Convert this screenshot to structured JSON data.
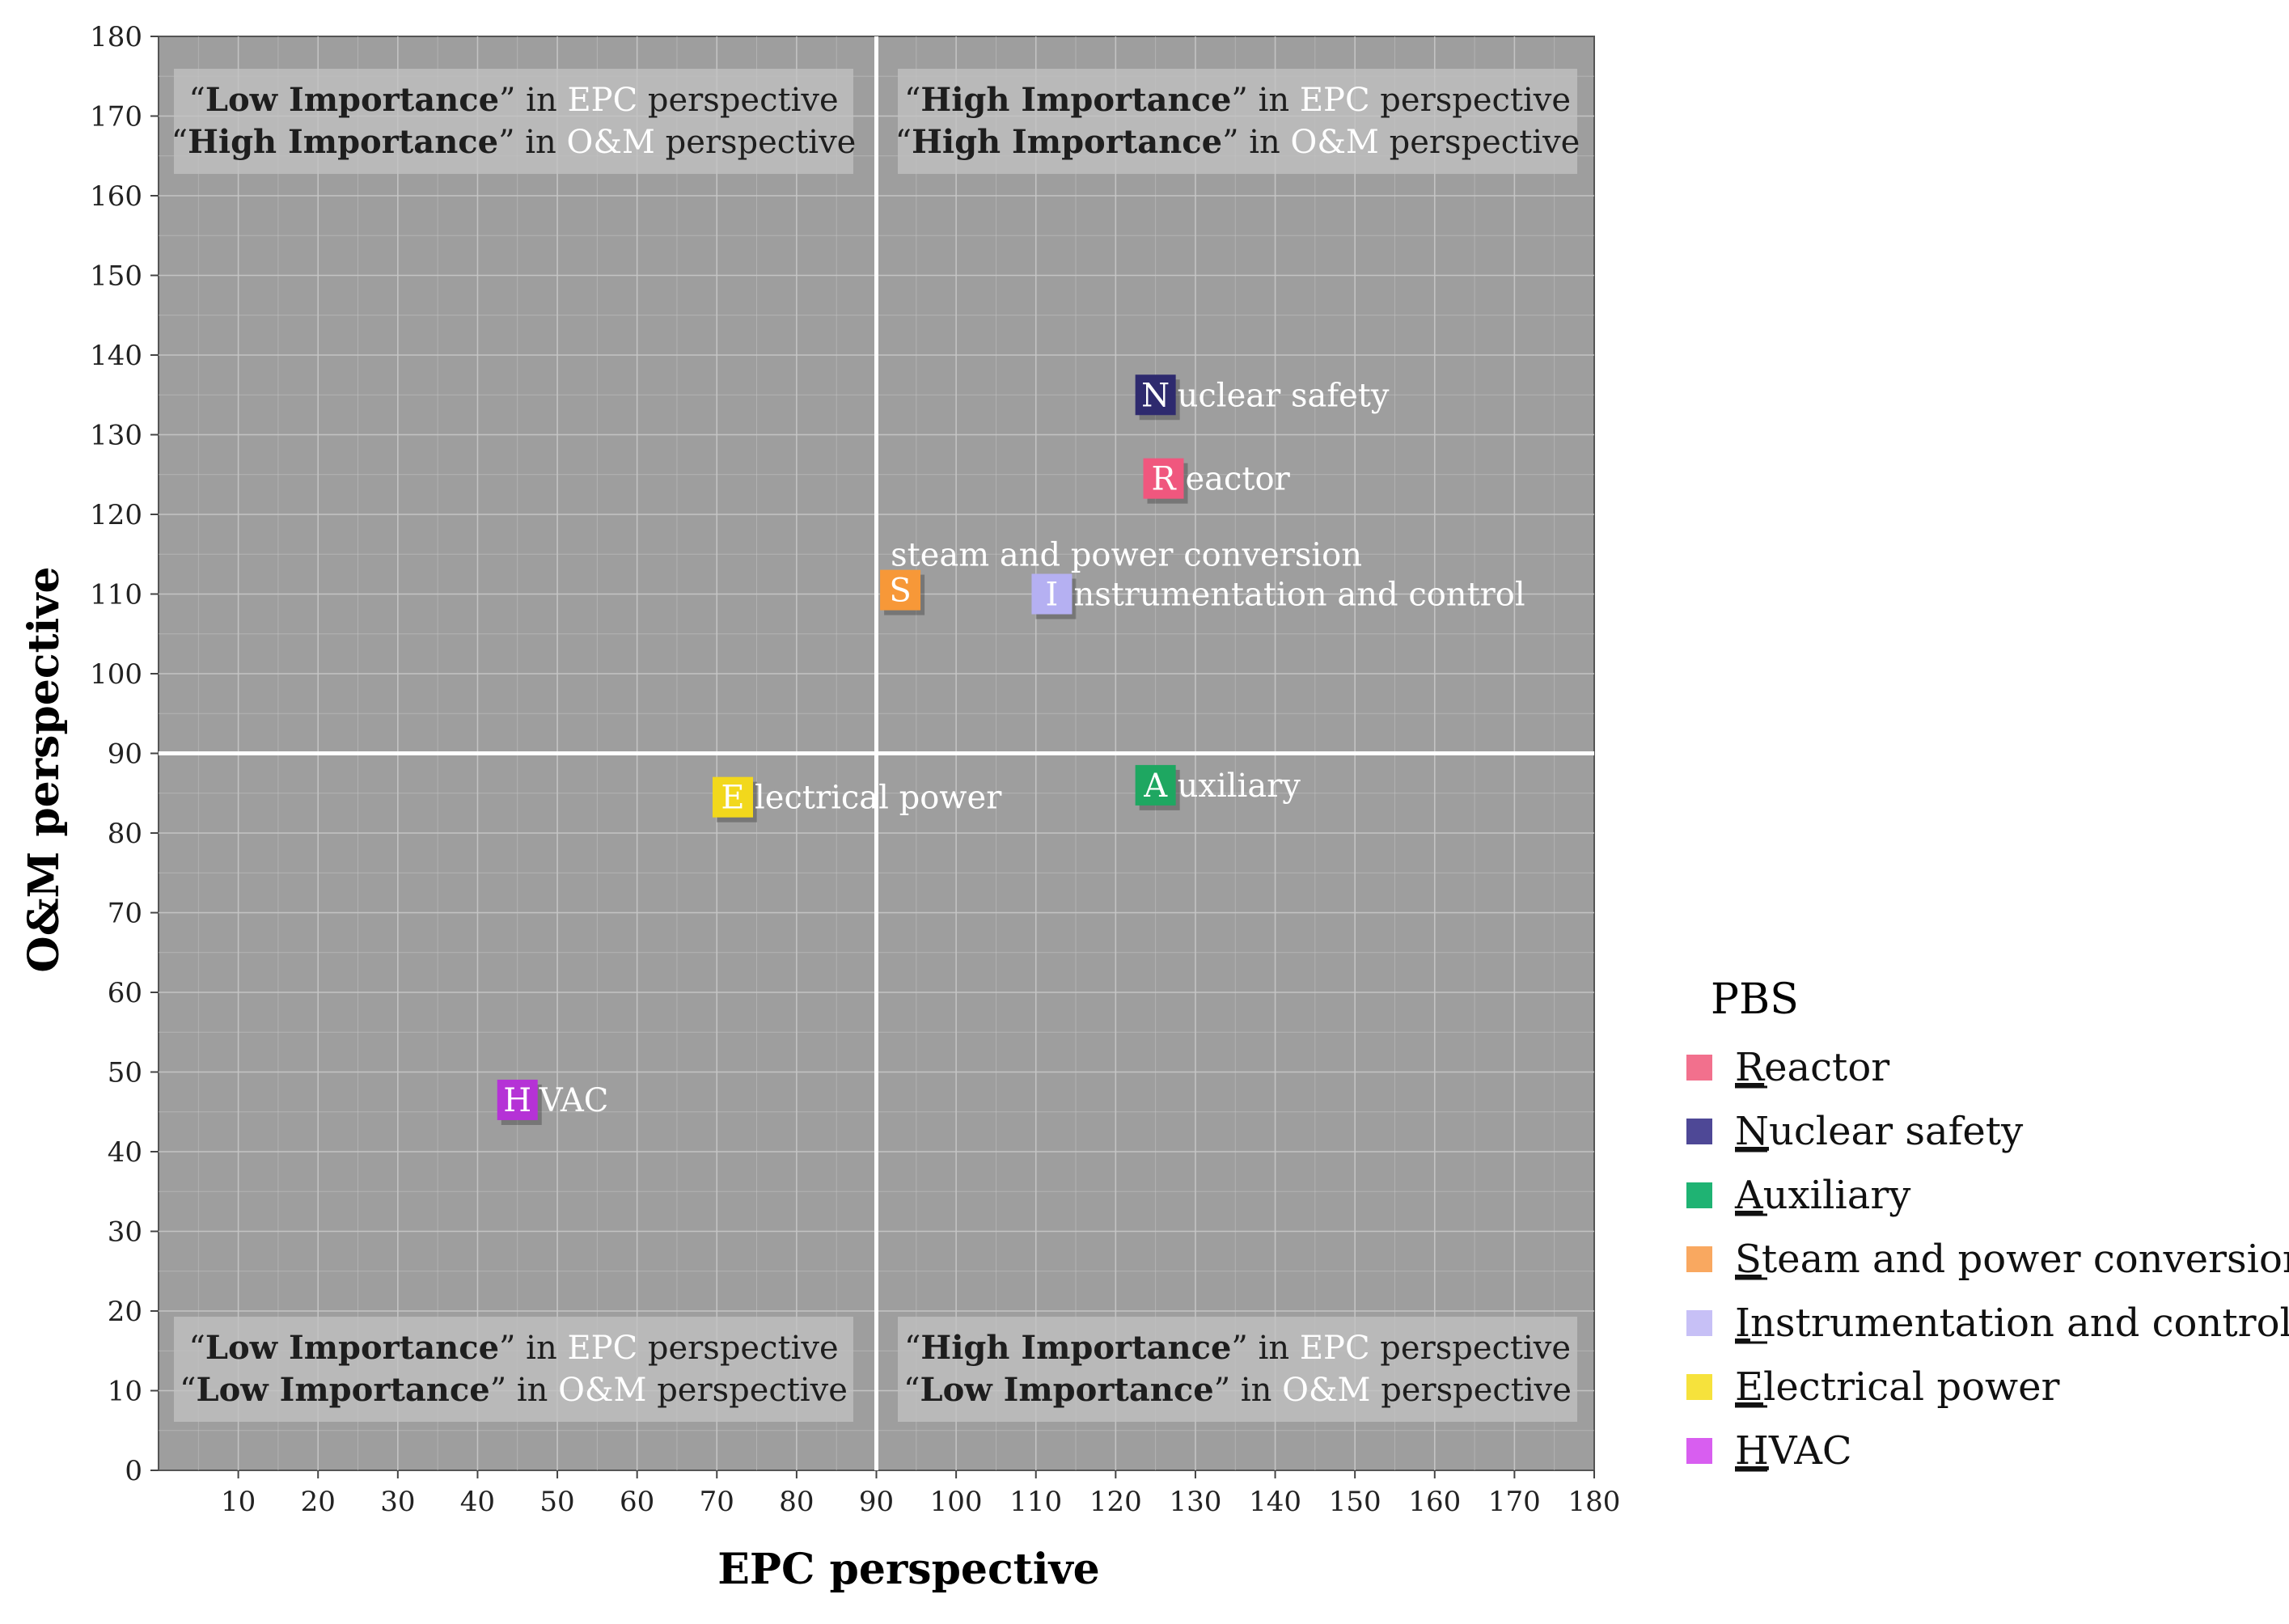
{
  "chart_data": {
    "type": "scatter",
    "xlabel": "EPC perspective",
    "ylabel": "O&M perspective",
    "xlim": [
      0,
      180
    ],
    "ylim": [
      0,
      180
    ],
    "x_ticks": [
      10,
      20,
      30,
      40,
      50,
      60,
      70,
      80,
      90,
      100,
      110,
      120,
      130,
      140,
      150,
      160,
      170,
      180
    ],
    "y_ticks": [
      0,
      10,
      20,
      30,
      40,
      50,
      60,
      70,
      80,
      90,
      100,
      110,
      120,
      130,
      140,
      150,
      160,
      170,
      180
    ],
    "x_threshold": 90,
    "y_threshold": 90,
    "plot_background": "#9e9e9e",
    "quadrants": [
      {
        "id": "top-left",
        "lines": [
          [
            {
              "t": "“"
            },
            {
              "t": "Low Importance",
              "b": true
            },
            {
              "t": "” in "
            },
            {
              "t": "EPC",
              "h": true
            },
            {
              "t": " perspective"
            }
          ],
          [
            {
              "t": "“"
            },
            {
              "t": "High Importance",
              "b": true
            },
            {
              "t": "” in "
            },
            {
              "t": "O&M",
              "h": true
            },
            {
              "t": " perspective"
            }
          ]
        ]
      },
      {
        "id": "top-right",
        "lines": [
          [
            {
              "t": "“"
            },
            {
              "t": "High Importance",
              "b": true
            },
            {
              "t": "” in "
            },
            {
              "t": "EPC",
              "h": true
            },
            {
              "t": " perspective"
            }
          ],
          [
            {
              "t": "“"
            },
            {
              "t": "High Importance",
              "b": true
            },
            {
              "t": "” in "
            },
            {
              "t": "O&M",
              "h": true
            },
            {
              "t": " perspective"
            }
          ]
        ]
      },
      {
        "id": "bottom-left",
        "lines": [
          [
            {
              "t": "“"
            },
            {
              "t": "Low Importance",
              "b": true
            },
            {
              "t": "” in "
            },
            {
              "t": "EPC",
              "h": true
            },
            {
              "t": " perspective"
            }
          ],
          [
            {
              "t": "“"
            },
            {
              "t": "Low Importance",
              "b": true
            },
            {
              "t": "” in "
            },
            {
              "t": "O&M",
              "h": true
            },
            {
              "t": " perspective"
            }
          ]
        ]
      },
      {
        "id": "bottom-right",
        "lines": [
          [
            {
              "t": "“"
            },
            {
              "t": "High Importance",
              "b": true
            },
            {
              "t": "” in "
            },
            {
              "t": "EPC",
              "h": true
            },
            {
              "t": " perspective"
            }
          ],
          [
            {
              "t": "“"
            },
            {
              "t": "Low Importance",
              "b": true
            },
            {
              "t": "” in "
            },
            {
              "t": "O&M",
              "h": true
            },
            {
              "t": " perspective"
            }
          ]
        ]
      }
    ],
    "points": [
      {
        "key": "N",
        "name": "Nuclear safety",
        "rest": "uclear safety",
        "x": 125,
        "y": 135,
        "color": "#2e2a6e"
      },
      {
        "key": "R",
        "name": "Reactor",
        "rest": "eactor",
        "x": 126,
        "y": 124.5,
        "color": "#f0577e"
      },
      {
        "key": "S",
        "name": "Steam and power conversion",
        "rest": "",
        "above": "steam and power conversion",
        "x": 93,
        "y": 110.5,
        "color": "#f79838"
      },
      {
        "key": "I",
        "name": "Instrumentation and control",
        "rest": "nstrumentation and control",
        "x": 112,
        "y": 110,
        "color": "#b5b0f2"
      },
      {
        "key": "A",
        "name": "Auxiliary",
        "rest": "uxiliary",
        "x": 125,
        "y": 86,
        "color": "#1ea761"
      },
      {
        "key": "E",
        "name": "Electrical power",
        "rest": "lectrical power",
        "x": 72,
        "y": 84.5,
        "color": "#f2d81c"
      },
      {
        "key": "H",
        "name": "HVAC",
        "rest": "VAC",
        "x": 45,
        "y": 46.5,
        "color": "#b532d6"
      }
    ],
    "legend": {
      "title": "PBS",
      "position": "right",
      "items": [
        {
          "key": "R",
          "rest": "eactor",
          "color": "#f2708d"
        },
        {
          "key": "N",
          "rest": "uclear safety",
          "color": "#4e4896"
        },
        {
          "key": "A",
          "rest": "uxiliary",
          "color": "#1fb373"
        },
        {
          "key": "S",
          "rest": "team and power conversion",
          "color": "#f9a860"
        },
        {
          "key": "I",
          "rest": "nstrumentation and control",
          "color": "#c7c0f6"
        },
        {
          "key": "E",
          "rest": "lectrical power",
          "color": "#f6e23c"
        },
        {
          "key": "H",
          "rest": "VAC",
          "color": "#d85ef0"
        }
      ]
    }
  }
}
